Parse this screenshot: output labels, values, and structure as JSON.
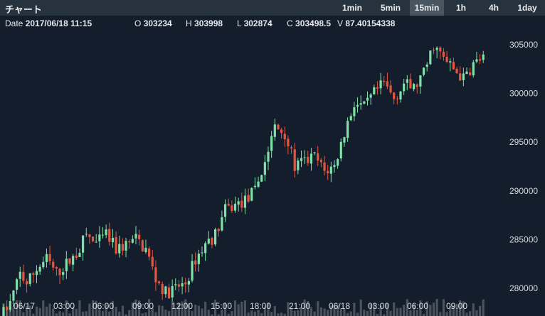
{
  "header": {
    "title": "チャート",
    "timeframes": [
      {
        "label": "1min",
        "active": false
      },
      {
        "label": "5min",
        "active": false
      },
      {
        "label": "15min",
        "active": true
      },
      {
        "label": "1h",
        "active": false
      },
      {
        "label": "4h",
        "active": false
      },
      {
        "label": "1day",
        "active": false
      }
    ]
  },
  "ohlc": {
    "date_label": "Date",
    "date_value": "2017/06/18 11:15",
    "open_label": "O",
    "open_value": "303234",
    "high_label": "H",
    "high_value": "303998",
    "low_label": "L",
    "low_value": "302874",
    "close_label": "C",
    "close_value": "303498.5",
    "volume_label": "V",
    "volume_value": "87.40154338"
  },
  "colors": {
    "background": "#131d2b",
    "toolbar": "#27323f",
    "active_tab": "#4a5562",
    "up_candle": "#7fe0a8",
    "down_candle": "#e8553f",
    "volume": "#4a525c",
    "axis_text": "#d7dbe0"
  },
  "chart_data": {
    "type": "candlestick",
    "y_axis": {
      "ticks": [
        280000,
        285000,
        290000,
        295000,
        300000,
        305000
      ],
      "labels": [
        "280000",
        "285000",
        "290000",
        "295000",
        "300000",
        "305000"
      ],
      "range": [
        275200,
        306800
      ],
      "position": "right"
    },
    "x_axis": {
      "labels": [
        "06/17",
        "03:00",
        "06:00",
        "09:00",
        "12:00",
        "15:00",
        "18:00",
        "21:00",
        "06/18",
        "03:00",
        "06:00",
        "09:00"
      ]
    },
    "path_points": [
      [
        0,
        277000
      ],
      [
        3,
        278500
      ],
      [
        6,
        281500
      ],
      [
        8,
        280500
      ],
      [
        11,
        282000
      ],
      [
        14,
        283000
      ],
      [
        17,
        281500
      ],
      [
        20,
        282500
      ],
      [
        23,
        283500
      ],
      [
        26,
        285500
      ],
      [
        29,
        284500
      ],
      [
        32,
        285500
      ],
      [
        35,
        284000
      ],
      [
        38,
        284500
      ],
      [
        41,
        285000
      ],
      [
        44,
        284000
      ],
      [
        47,
        281000
      ],
      [
        50,
        279500
      ],
      [
        53,
        280000
      ],
      [
        56,
        280500
      ],
      [
        59,
        283000
      ],
      [
        62,
        284500
      ],
      [
        65,
        285500
      ],
      [
        68,
        288000
      ],
      [
        71,
        288500
      ],
      [
        74,
        289000
      ],
      [
        77,
        290000
      ],
      [
        80,
        293000
      ],
      [
        83,
        296500
      ],
      [
        86,
        296000
      ],
      [
        89,
        292500
      ],
      [
        92,
        293000
      ],
      [
        95,
        293500
      ],
      [
        98,
        292000
      ],
      [
        101,
        292500
      ],
      [
        104,
        296000
      ],
      [
        107,
        299000
      ],
      [
        110,
        298500
      ],
      [
        113,
        300000
      ],
      [
        116,
        301000
      ],
      [
        119,
        299500
      ],
      [
        122,
        301000
      ],
      [
        125,
        300500
      ],
      [
        128,
        302000
      ],
      [
        131,
        305000
      ],
      [
        134,
        303500
      ],
      [
        137,
        302500
      ],
      [
        140,
        301500
      ],
      [
        143,
        303000
      ],
      [
        145,
        303500
      ]
    ],
    "volume": "small bars along the bottom edge"
  }
}
